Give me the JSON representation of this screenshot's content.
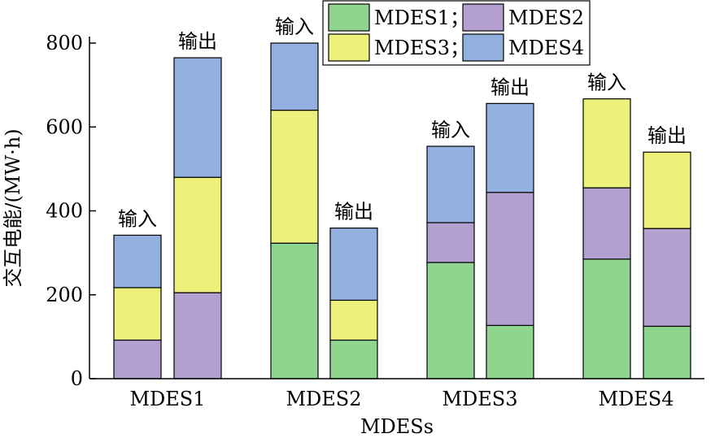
{
  "chart_data": {
    "type": "bar",
    "stacked": true,
    "xlabel": "MDESs",
    "ylabel": "交互电能/(MW·h)",
    "ylim": [
      0,
      800
    ],
    "yticks": [
      0,
      200,
      400,
      600,
      800
    ],
    "grid": false,
    "legend_position": "top-center",
    "categories": [
      "MDES1",
      "MDES2",
      "MDES3",
      "MDES4"
    ],
    "legend_items": [
      {
        "series": "MDES1",
        "label": "MDES1；"
      },
      {
        "series": "MDES2",
        "label": "MDES2"
      },
      {
        "series": "MDES3",
        "label": "MDES3；"
      },
      {
        "series": "MDES4",
        "label": "MDES4"
      }
    ],
    "series": [
      {
        "name": "MDES1",
        "color": "#8fd48f"
      },
      {
        "name": "MDES2",
        "color": "#b3a0d0"
      },
      {
        "name": "MDES3",
        "color": "#eef07c"
      },
      {
        "name": "MDES4",
        "color": "#93b0e0"
      }
    ],
    "bars": [
      {
        "category": "MDES1",
        "label": "输入",
        "segments": {
          "MDES1": 0,
          "MDES2": 92,
          "MDES3": 125,
          "MDES4": 125
        }
      },
      {
        "category": "MDES1",
        "label": "输出",
        "segments": {
          "MDES1": 0,
          "MDES2": 205,
          "MDES3": 275,
          "MDES4": 285
        }
      },
      {
        "category": "MDES2",
        "label": "输入",
        "segments": {
          "MDES1": 323,
          "MDES2": 0,
          "MDES3": 317,
          "MDES4": 160
        }
      },
      {
        "category": "MDES2",
        "label": "输出",
        "segments": {
          "MDES1": 92,
          "MDES2": 0,
          "MDES3": 95,
          "MDES4": 172
        }
      },
      {
        "category": "MDES3",
        "label": "输入",
        "segments": {
          "MDES1": 277,
          "MDES2": 95,
          "MDES3": 0,
          "MDES4": 182
        }
      },
      {
        "category": "MDES3",
        "label": "输出",
        "segments": {
          "MDES1": 127,
          "MDES2": 317,
          "MDES3": 0,
          "MDES4": 212
        }
      },
      {
        "category": "MDES4",
        "label": "输入",
        "segments": {
          "MDES1": 285,
          "MDES2": 170,
          "MDES3": 212,
          "MDES4": 0
        }
      },
      {
        "category": "MDES4",
        "label": "输出",
        "segments": {
          "MDES1": 125,
          "MDES2": 233,
          "MDES3": 182,
          "MDES4": 0
        }
      }
    ]
  }
}
